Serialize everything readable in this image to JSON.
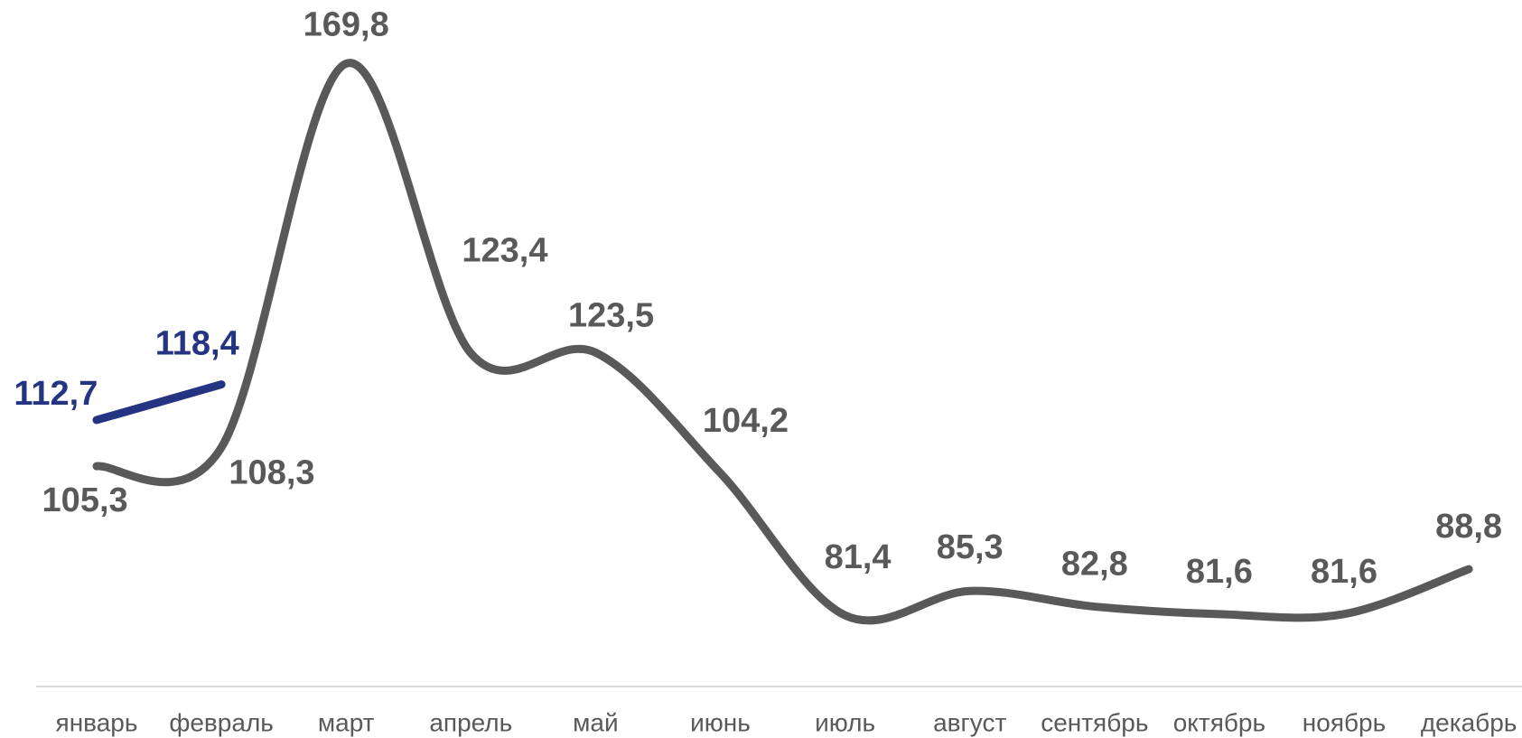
{
  "chart_data": {
    "type": "line",
    "categories": [
      "январь",
      "февраль",
      "март",
      "апрель",
      "май",
      "июнь",
      "июль",
      "август",
      "сентябрь",
      "октябрь",
      "ноябрь",
      "декабрь"
    ],
    "series": [
      {
        "color": "#595959",
        "values": [
          105.3,
          108.3,
          169.8,
          123.4,
          123.5,
          104.2,
          81.4,
          85.3,
          82.8,
          81.6,
          81.6,
          88.8
        ],
        "value_labels": [
          "105,3",
          "108,3",
          "169,8",
          "123,4",
          "123,5",
          "104,2",
          "81,4",
          "85,3",
          "82,8",
          "81,6",
          "81,6",
          "88,8"
        ]
      },
      {
        "color": "#253383",
        "values": [
          112.7,
          118.4,
          null,
          null,
          null,
          null,
          null,
          null,
          null,
          null,
          null,
          null
        ],
        "value_labels": [
          "112,7",
          "118,4",
          null,
          null,
          null,
          null,
          null,
          null,
          null,
          null,
          null,
          null
        ]
      }
    ],
    "ylim": [
      70,
      180
    ]
  }
}
